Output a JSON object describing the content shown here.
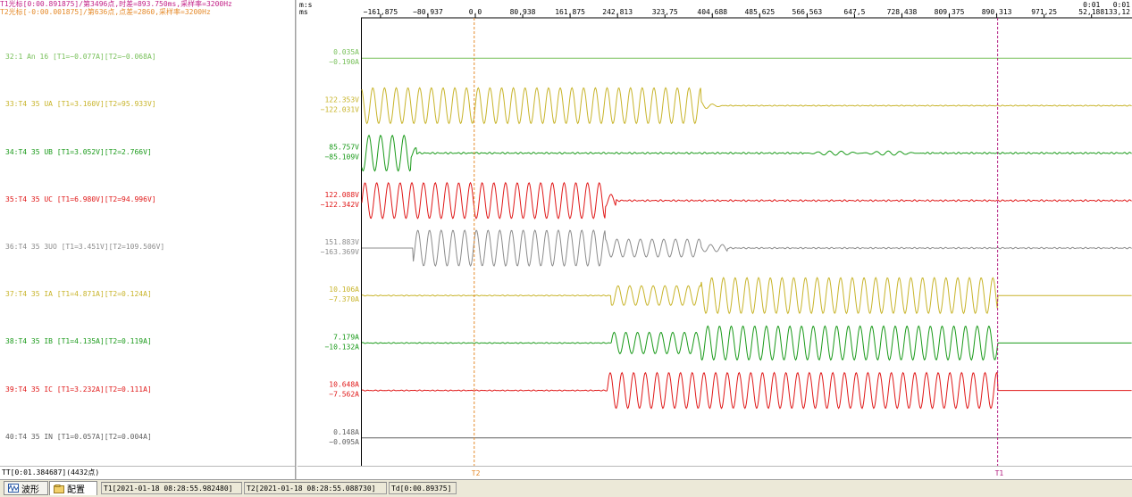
{
  "cursor_info": {
    "t1": "T1光标[0:00.891875]/第3496点,时差=893.750ms,采样率=3200Hz",
    "t2": "T2光标[-0:00.001875]/第636点,点差=2860,采样率=3200Hz"
  },
  "axis": {
    "unit_top": "m:s",
    "unit_bottom": "ms",
    "ticks": [
      {
        "v": -161.875,
        "label": "−161,875"
      },
      {
        "v": -80.937,
        "label": "−80,937"
      },
      {
        "v": 0,
        "label": "0,0"
      },
      {
        "v": 80.938,
        "label": "80,938"
      },
      {
        "v": 161.875,
        "label": "161,875"
      },
      {
        "v": 242.813,
        "label": "242,813"
      },
      {
        "v": 323.75,
        "label": "323,75"
      },
      {
        "v": 404.688,
        "label": "404,688"
      },
      {
        "v": 485.625,
        "label": "485,625"
      },
      {
        "v": 566.563,
        "label": "566,563"
      },
      {
        "v": 647.5,
        "label": "647,5"
      },
      {
        "v": 728.438,
        "label": "728,438"
      },
      {
        "v": 809.375,
        "label": "809,375"
      },
      {
        "v": 890.313,
        "label": "890,313"
      },
      {
        "v": 971.25,
        "label": "971,25"
      },
      {
        "v": 1052.188,
        "label": "52,188",
        "top": "0:01"
      },
      {
        "v": 1133.125,
        "label": "133,12",
        "top": "0:01"
      }
    ]
  },
  "cursors": {
    "t1": {
      "label": "T1",
      "ms": 891.875,
      "color": "#b21d80"
    },
    "t2": {
      "label": "T2",
      "ms": -1.875,
      "color": "#e58a2a"
    }
  },
  "channels": [
    {
      "label": "32:1 An 16 [T1=−0.077A][T2=−0.068A]",
      "max": "0.035A",
      "min": "−0.190A",
      "color": "#78c05a",
      "pattern": "flat"
    },
    {
      "label": "33:T4 35 UA [T1=3.160V][T2=95.933V]",
      "max": "122.353V",
      "min": "−122.031V",
      "color": "#c8b42a",
      "pattern": "ua"
    },
    {
      "label": "34:T4 35 UB [T1=3.052V][T2=2.766V]",
      "max": "85.757V",
      "min": "−85.109V",
      "color": "#1a9a1a",
      "pattern": "ub"
    },
    {
      "label": "35:T4 35 UC [T1=6.980V][T2=94.996V]",
      "max": "122.088V",
      "min": "−122.342V",
      "color": "#e01818",
      "pattern": "uc"
    },
    {
      "label": "36:T4 35 3UO [T1=3.451V][T2=109.506V]",
      "max": "151.883V",
      "min": "−163.369V",
      "color": "#8c8c8c",
      "pattern": "u0"
    },
    {
      "label": "37:T4 35 IA [T1=4.871A][T2=0.124A]",
      "max": "10.106A",
      "min": "−7.370A",
      "color": "#c8b42a",
      "pattern": "ia"
    },
    {
      "label": "38:T4 35 IB [T1=4.135A][T2=0.119A]",
      "max": "7.179A",
      "min": "−10.132A",
      "color": "#1a9a1a",
      "pattern": "ib"
    },
    {
      "label": "39:T4 35 IC [T1=3.232A][T2=0.111A]",
      "max": "10.648A",
      "min": "−7.562A",
      "color": "#e01818",
      "pattern": "ic"
    },
    {
      "label": "40:T4 35 IN [T1=0.057A][T2=0.004A]",
      "max": "0.148A",
      "min": "−0.095A",
      "color": "#606060",
      "pattern": "flat"
    }
  ],
  "tt_bar": "TT[0:01.384687](4432点)",
  "status_bar": {
    "tab_waveform": "波形",
    "tab_config": "配置",
    "t1_time": "T1[2021-01-18 08:28:55.982480]",
    "t2_time": "T2[2021-01-18 08:28:55.088730]",
    "td": "Td[0:00.89375]"
  }
}
